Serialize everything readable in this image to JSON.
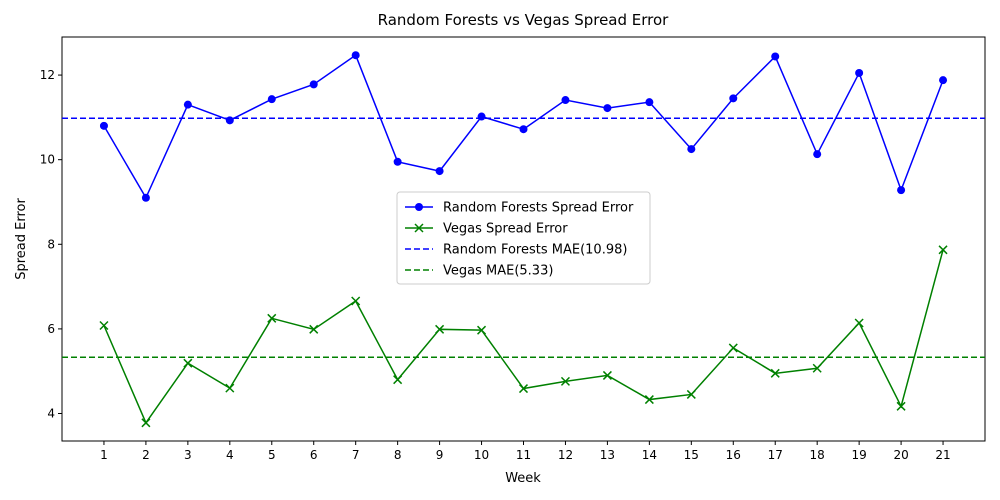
{
  "chart_data": {
    "type": "line",
    "title": "Random Forests vs Vegas Spread Error",
    "xlabel": "Week",
    "ylabel": "Spread Error",
    "categories": [
      "1",
      "2",
      "3",
      "4",
      "5",
      "6",
      "7",
      "8",
      "9",
      "10",
      "11",
      "12",
      "13",
      "14",
      "15",
      "16",
      "17",
      "18",
      "19",
      "20",
      "21"
    ],
    "x": [
      1,
      2,
      3,
      4,
      5,
      6,
      7,
      8,
      9,
      10,
      11,
      12,
      13,
      14,
      15,
      16,
      17,
      18,
      19,
      20,
      21
    ],
    "ylim": [
      3.35,
      12.9
    ],
    "xlim": [
      0.0,
      22.0
    ],
    "yticks": [
      4,
      6,
      8,
      10,
      12
    ],
    "grid": false,
    "legend_position": "center",
    "series": [
      {
        "name": "Random Forests Spread Error",
        "color": "#0000ff",
        "marker": "circle",
        "values": [
          10.8,
          9.1,
          11.3,
          10.93,
          11.43,
          11.78,
          12.47,
          9.95,
          9.73,
          11.02,
          10.72,
          11.41,
          11.22,
          11.36,
          10.25,
          11.45,
          12.44,
          10.13,
          12.05,
          9.28,
          11.88
        ]
      },
      {
        "name": "Vegas Spread Error",
        "color": "#008000",
        "marker": "x",
        "values": [
          6.08,
          3.78,
          5.19,
          4.6,
          6.25,
          5.99,
          6.66,
          4.8,
          5.99,
          5.97,
          4.59,
          4.76,
          4.9,
          4.33,
          4.45,
          5.55,
          4.95,
          5.07,
          6.14,
          4.17,
          7.87
        ]
      }
    ],
    "reference_lines": [
      {
        "name": "Random Forests MAE(10.98)",
        "value": 10.98,
        "color": "#0000ff",
        "style": "dashed"
      },
      {
        "name": "Vegas MAE(5.33)",
        "value": 5.33,
        "color": "#008000",
        "style": "dashed"
      }
    ]
  }
}
